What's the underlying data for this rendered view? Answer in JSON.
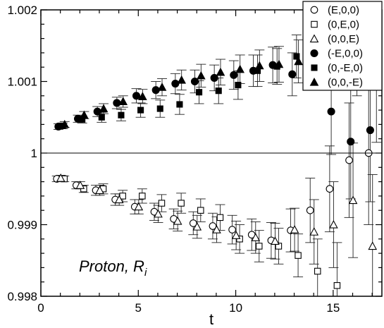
{
  "chart_data": {
    "type": "scatter",
    "title": "",
    "xlabel": "t",
    "ylabel": "",
    "annotation": {
      "main": "Proton, R",
      "sub": "i"
    },
    "xlim": [
      0,
      17.5
    ],
    "ylim": [
      0.998,
      1.002
    ],
    "xticks": [
      0,
      5,
      10,
      15
    ],
    "xtick_labels": [
      "0",
      "5",
      "10",
      "15"
    ],
    "yticks": [
      0.998,
      0.999,
      1.0,
      1.001,
      1.002
    ],
    "ytick_labels": [
      "0.998",
      "0.999",
      "1",
      "1.001",
      "1.002"
    ],
    "reference_line": 1.0,
    "legend_position": "top-right",
    "series": [
      {
        "name": "(E,0,0)",
        "marker": "circle-open",
        "x": [
          1,
          2,
          3,
          4,
          5,
          6,
          7,
          8,
          9,
          10,
          11,
          12,
          13,
          14,
          15,
          16,
          17
        ],
        "y": [
          0.99964,
          0.99955,
          0.99948,
          0.99935,
          0.99925,
          0.99918,
          0.99908,
          0.99902,
          0.99898,
          0.99893,
          0.99886,
          0.99878,
          0.99892,
          0.9992,
          0.9995,
          0.9999,
          1.0
        ],
        "err": [
          4e-05,
          5e-05,
          7e-05,
          8e-05,
          0.0001,
          0.00012,
          0.00014,
          0.00016,
          0.00018,
          0.0002,
          0.00022,
          0.00025,
          0.0003,
          0.00045,
          0.0006,
          0.0008,
          0.001
        ]
      },
      {
        "name": "(0,E,0)",
        "marker": "square-open",
        "x": [
          1,
          2,
          3,
          4,
          5,
          6,
          7,
          8,
          9,
          10,
          11,
          12,
          13,
          14,
          15
        ],
        "y": [
          0.99964,
          0.9995,
          0.9995,
          0.9994,
          0.9994,
          0.9993,
          0.9993,
          0.9992,
          0.9991,
          0.9988,
          0.9987,
          0.9987,
          0.99857,
          0.99835,
          0.99815
        ],
        "err": [
          4e-05,
          5e-05,
          7e-05,
          8e-05,
          0.0001,
          0.00012,
          0.00014,
          0.00016,
          0.00018,
          0.0002,
          0.00022,
          0.00025,
          0.0003,
          0.00045,
          0.0006
        ]
      },
      {
        "name": "(0,0,E)",
        "marker": "triangle-open",
        "x": [
          1,
          2,
          3,
          4,
          5,
          6,
          7,
          8,
          9,
          10,
          11,
          12,
          13,
          14,
          15,
          16,
          17
        ],
        "y": [
          0.99965,
          0.99955,
          0.99948,
          0.99935,
          0.99925,
          0.99915,
          0.99905,
          0.99897,
          0.99893,
          0.99885,
          0.99882,
          0.99877,
          0.99893,
          0.9989,
          0.999,
          0.99934,
          0.9987
        ],
        "err": [
          4e-05,
          5e-05,
          7e-05,
          8e-05,
          0.0001,
          0.00012,
          0.00014,
          0.00016,
          0.00018,
          0.0002,
          0.00022,
          0.00025,
          0.0003,
          0.00045,
          0.0006,
          0.0008,
          0.001
        ]
      },
      {
        "name": "(-E,0,0)",
        "marker": "circle-filled",
        "x": [
          1,
          2,
          3,
          4,
          5,
          6,
          7,
          8,
          9,
          10,
          11,
          12,
          13,
          14,
          15,
          16,
          17
        ],
        "y": [
          1.00037,
          1.00048,
          1.00058,
          1.0007,
          1.0008,
          1.00088,
          1.00097,
          1.001,
          1.00105,
          1.00109,
          1.00115,
          1.00123,
          1.0011,
          1.0015,
          1.00058,
          1.00016,
          1.00032
        ],
        "err": [
          4e-05,
          5e-05,
          7e-05,
          8e-05,
          0.0001,
          0.00012,
          0.00014,
          0.00016,
          0.00018,
          0.0002,
          0.00022,
          0.00025,
          0.0003,
          0.00045,
          0.0006,
          0.0008,
          0.001
        ]
      },
      {
        "name": "(0,-E,0)",
        "marker": "square-filled",
        "x": [
          1,
          2,
          3,
          4,
          5,
          6,
          7,
          8,
          9,
          10,
          11,
          12,
          13
        ],
        "y": [
          1.00038,
          1.00047,
          1.0005,
          1.00053,
          1.0006,
          1.00062,
          1.00068,
          1.00085,
          1.00087,
          1.00095,
          1.00115,
          1.00121,
          1.00135
        ],
        "err": [
          4e-05,
          5e-05,
          7e-05,
          8e-05,
          0.0001,
          0.00012,
          0.00014,
          0.00016,
          0.00018,
          0.0002,
          0.00022,
          0.00025,
          0.0003
        ]
      },
      {
        "name": "(0,0,-E)",
        "marker": "triangle-filled",
        "x": [
          1,
          2,
          3,
          4,
          5,
          6,
          7,
          8,
          9,
          10,
          11,
          12,
          13,
          14,
          15,
          16,
          17
        ],
        "y": [
          1.0004,
          1.00053,
          1.00062,
          1.00072,
          1.00079,
          1.00092,
          1.00102,
          1.00108,
          1.00113,
          1.00117,
          1.00122,
          1.00124,
          1.00128,
          1.0014,
          1.0016,
          1.0016,
          1.00115
        ],
        "err": [
          4e-05,
          5e-05,
          7e-05,
          8e-05,
          0.0001,
          0.00012,
          0.00014,
          0.00016,
          0.00018,
          0.0002,
          0.00022,
          0.00025,
          0.0003,
          0.00045,
          0.0006,
          0.0008,
          0.001
        ]
      }
    ]
  }
}
